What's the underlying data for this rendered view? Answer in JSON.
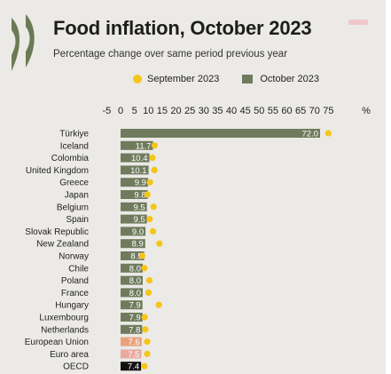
{
  "header": {
    "title_highlight": "Food inflation",
    "title_rest": ", October 2023",
    "subtitle": "Percentage change over same period previous year"
  },
  "legend": {
    "september": "September 2023",
    "october": "October 2023"
  },
  "colors": {
    "background": "#ebeae6",
    "october_bar": "#707b5e",
    "september_dot": "#f5c518",
    "european_union_bar": "#e8a27b",
    "euro_area_bar": "#e9a9a0",
    "oecd_bar": "#111111",
    "title_highlight": "#f5c518",
    "logo": "#6b7a55"
  },
  "chart_data": {
    "type": "bar",
    "orientation": "horizontal",
    "title": "Food inflation, October 2023",
    "subtitle": "Percentage change over same period previous year",
    "unit": "%",
    "xlim": [
      -5,
      75
    ],
    "xticks": [
      -5,
      0,
      5,
      10,
      15,
      20,
      25,
      30,
      35,
      40,
      45,
      50,
      55,
      60,
      65,
      70,
      75
    ],
    "legend_position": "top",
    "grid": false,
    "categories": [
      "Türkiye",
      "Iceland",
      "Colombia",
      "United Kingdom",
      "Greece",
      "Japan",
      "Belgium",
      "Spain",
      "Slovak Republic",
      "New Zealand",
      "Norway",
      "Chile",
      "Poland",
      "France",
      "Hungary",
      "Luxembourg",
      "Netherlands",
      "European Union",
      "Euro area",
      "OECD"
    ],
    "series": [
      {
        "name": "October 2023",
        "values": [
          72.0,
          11.7,
          10.4,
          10.1,
          9.9,
          9.8,
          9.5,
          9.5,
          9.0,
          8.9,
          8.5,
          8.0,
          8.0,
          8.0,
          7.9,
          7.9,
          7.8,
          7.6,
          7.5,
          7.4
        ]
      },
      {
        "name": "September 2023",
        "values": [
          75.0,
          12.3,
          11.5,
          12.2,
          10.6,
          9.7,
          11.9,
          10.5,
          11.7,
          14.0,
          7.8,
          8.6,
          10.4,
          10.1,
          13.8,
          8.7,
          8.9,
          9.6,
          9.6,
          8.6
        ]
      }
    ],
    "value_labels": [
      "72.0",
      "11.7",
      "10.4",
      "10.1",
      "9.9",
      "9.8",
      "9.5",
      "9.5",
      "9.0",
      "8.9",
      "8.5",
      "8.0",
      "8.0",
      "8.0",
      "7.9",
      "7.9",
      "7.8",
      "7.6",
      "7.5",
      "7.4"
    ]
  }
}
